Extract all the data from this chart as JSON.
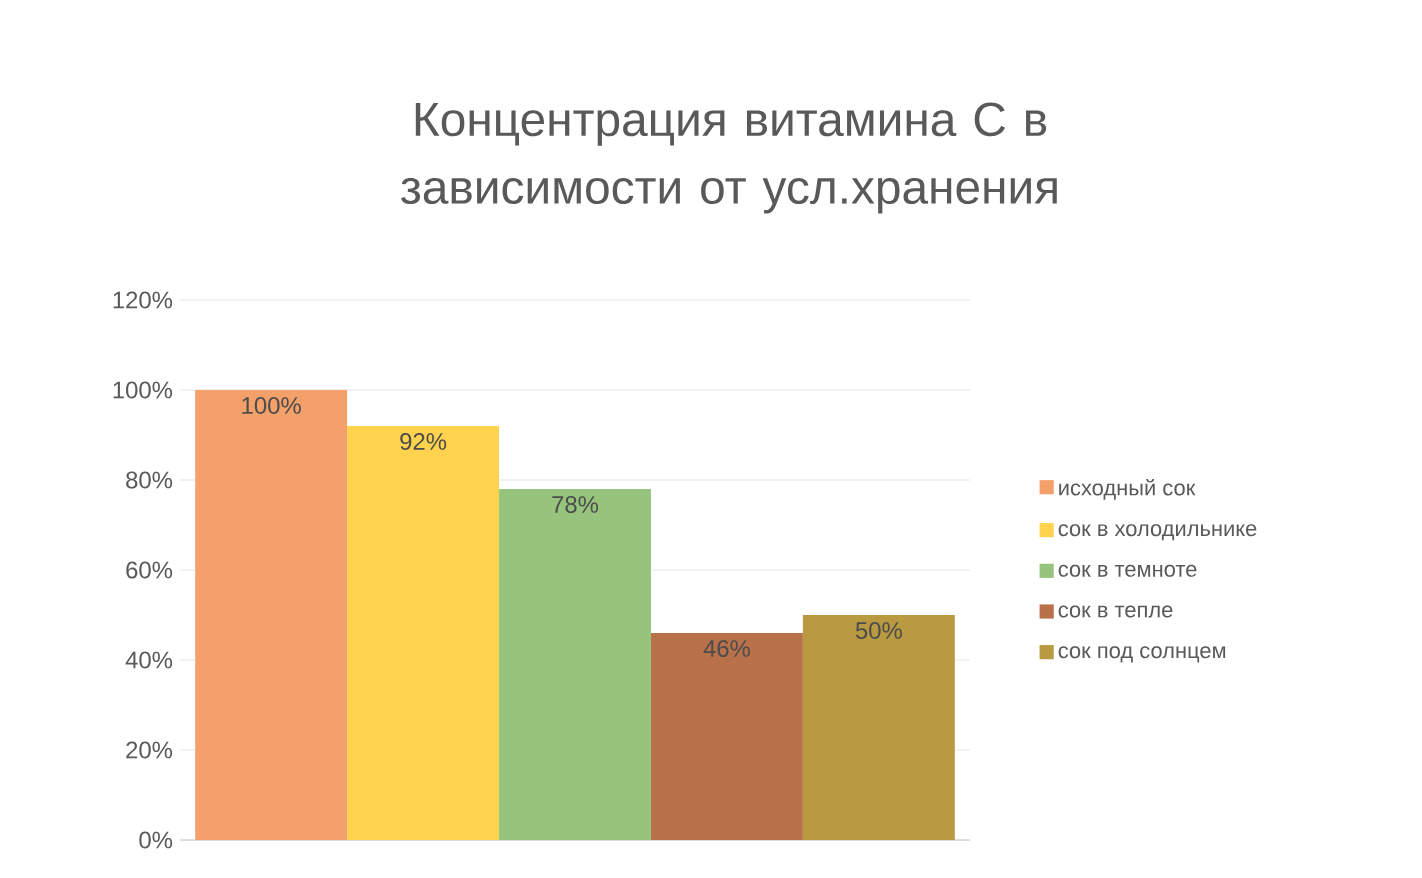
{
  "chart_data": {
    "type": "bar",
    "title": "Концентрация витамина C в зависимости от усл.хранения",
    "categories": [
      null
    ],
    "series": [
      {
        "name": "исходный сок",
        "color": "#f4a06a",
        "values": [
          100
        ]
      },
      {
        "name": "сок в холодильнике",
        "color": "#ffd34e",
        "values": [
          92
        ]
      },
      {
        "name": "сок в темноте",
        "color": "#97c47c",
        "values": [
          78
        ]
      },
      {
        "name": "сок в тепле",
        "color": "#b9714a",
        "values": [
          46
        ]
      },
      {
        "name": "сок под солнцем",
        "color": "#b99a41",
        "values": [
          50
        ]
      }
    ],
    "value_labels": [
      "100%",
      "92%",
      "78%",
      "46%",
      "50%"
    ],
    "ylim": [
      0,
      120
    ],
    "yticks": [
      {
        "value": 0,
        "label": "0%"
      },
      {
        "value": 20,
        "label": "20%"
      },
      {
        "value": 40,
        "label": "40%"
      },
      {
        "value": 60,
        "label": "60%"
      },
      {
        "value": 80,
        "label": "80%"
      },
      {
        "value": 100,
        "label": "100%"
      },
      {
        "value": 120,
        "label": "120%"
      }
    ],
    "grid": "y",
    "legend": "right"
  }
}
